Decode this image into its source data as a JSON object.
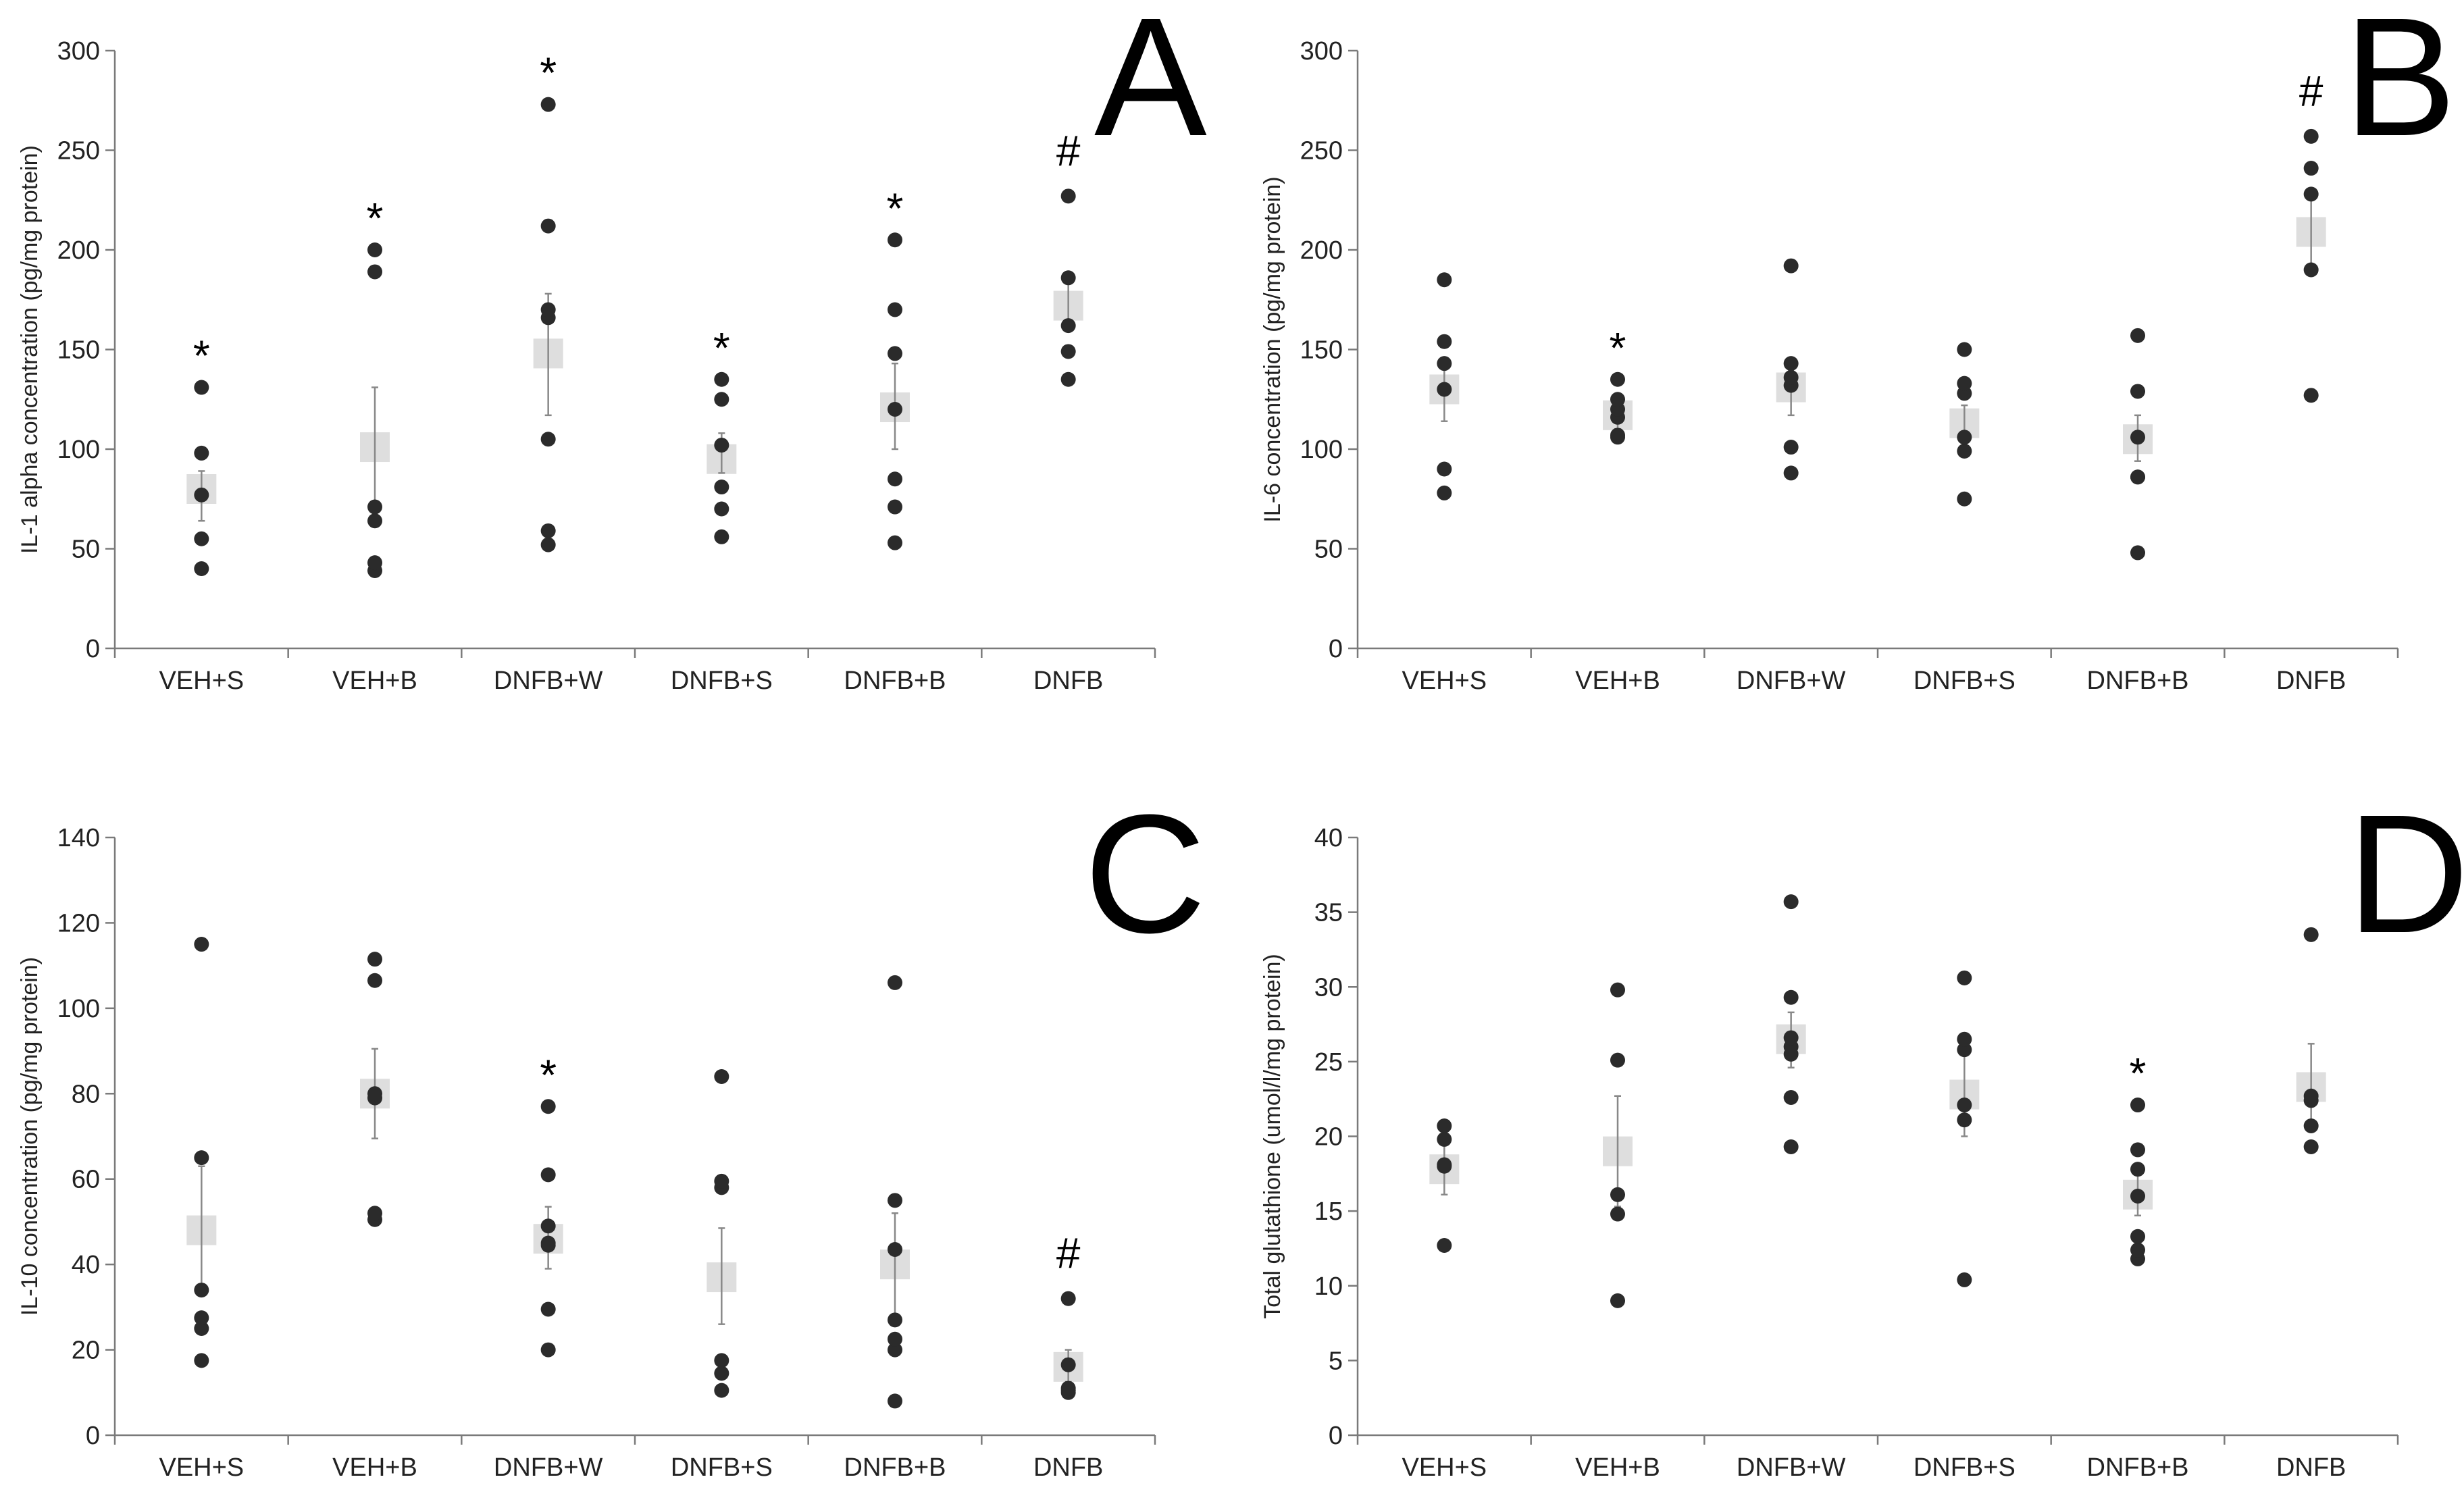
{
  "chart_data": [
    {
      "type": "scatter",
      "panel": "A",
      "categories": [
        "VEH+S",
        "VEH+B",
        "DNFB+W",
        "DNFB+S",
        "DNFB+B",
        "DNFB"
      ],
      "ylabel": "IL-1 alpha concentration (pg/mg protein)",
      "ylim": [
        0,
        300
      ],
      "yticks": [
        0,
        50,
        100,
        150,
        200,
        250,
        300
      ],
      "points": [
        [
          40,
          55,
          77,
          98,
          131
        ],
        [
          39,
          43,
          64,
          71,
          189,
          200
        ],
        [
          52,
          59,
          105,
          166,
          170,
          212,
          273
        ],
        [
          56,
          70,
          81,
          102,
          125,
          135
        ],
        [
          53,
          71,
          85,
          120,
          148,
          170,
          205
        ],
        [
          135,
          149,
          162,
          186,
          227
        ]
      ],
      "means": [
        80,
        101,
        148,
        95,
        121,
        172
      ],
      "errors": [
        [
          64,
          89
        ],
        [
          70,
          131
        ],
        [
          117,
          178
        ],
        [
          88,
          108
        ],
        [
          100,
          143
        ],
        [
          160,
          184
        ]
      ],
      "annotations": [
        "*",
        "*",
        "*",
        "*",
        "*",
        "#"
      ]
    },
    {
      "type": "scatter",
      "panel": "B",
      "categories": [
        "VEH+S",
        "VEH+B",
        "DNFB+W",
        "DNFB+S",
        "DNFB+B",
        "DNFB"
      ],
      "ylabel": "IL-6 concentration (pg/mg protein)",
      "ylim": [
        0,
        300
      ],
      "yticks": [
        0,
        50,
        100,
        150,
        200,
        250,
        300
      ],
      "points": [
        [
          78,
          90,
          130,
          143,
          154,
          185
        ],
        [
          106,
          107,
          116,
          120,
          125,
          135
        ],
        [
          88,
          101,
          132,
          136,
          143,
          192
        ],
        [
          75,
          99,
          106,
          128,
          133,
          150
        ],
        [
          48,
          86,
          86,
          106,
          129,
          157
        ],
        [
          127,
          190,
          228,
          241,
          257
        ]
      ],
      "means": [
        130,
        117,
        131,
        113,
        105,
        209
      ],
      "errors": [
        [
          114,
          146
        ],
        [
          110,
          125
        ],
        [
          117,
          145
        ],
        [
          104,
          122
        ],
        [
          94,
          117
        ],
        [
          190,
          226
        ]
      ],
      "annotations": [
        "",
        "*",
        "",
        "",
        "",
        "#"
      ]
    },
    {
      "type": "scatter",
      "panel": "C",
      "categories": [
        "VEH+S",
        "VEH+B",
        "DNFB+W",
        "DNFB+S",
        "DNFB+B",
        "DNFB"
      ],
      "ylabel": "IL-10 concentration (pg/mg protein)",
      "ylim": [
        0,
        140
      ],
      "yticks": [
        0,
        20,
        40,
        60,
        80,
        100,
        120,
        140
      ],
      "points": [
        [
          17.5,
          25,
          27.5,
          34,
          65,
          115
        ],
        [
          50.5,
          52,
          79,
          80,
          106.5,
          111.5
        ],
        [
          20,
          29.5,
          44.5,
          45,
          49,
          61,
          77
        ],
        [
          10.5,
          14.5,
          17.5,
          58,
          59.5,
          84
        ],
        [
          8,
          20,
          22.5,
          27,
          43.5,
          55,
          106
        ],
        [
          10,
          10.5,
          11,
          16.5,
          32
        ]
      ],
      "means": [
        48,
        80,
        46,
        37,
        40,
        16
      ],
      "errors": [
        [
          34,
          63
        ],
        [
          69.5,
          90.5
        ],
        [
          39,
          53.5
        ],
        [
          26,
          48.5
        ],
        [
          28,
          52
        ],
        [
          12.5,
          20
        ]
      ],
      "annotations": [
        "",
        "",
        "*",
        "",
        "",
        "#"
      ]
    },
    {
      "type": "scatter",
      "panel": "D",
      "categories": [
        "VEH+S",
        "VEH+B",
        "DNFB+W",
        "DNFB+S",
        "DNFB+B",
        "DNFB"
      ],
      "ylabel": "Total glutathione (umol/l/mg protein)",
      "ylim": [
        0,
        40
      ],
      "yticks": [
        0,
        5,
        10,
        15,
        20,
        25,
        30,
        35,
        40
      ],
      "points": [
        [
          12.7,
          18,
          18.1,
          19.8,
          20.7
        ],
        [
          9,
          14.8,
          16.1,
          25.1,
          29.8
        ],
        [
          19.3,
          22.6,
          25.5,
          26,
          26.6,
          29.3,
          35.7
        ],
        [
          10.4,
          21.1,
          22.1,
          25.8,
          26.5,
          30.6
        ],
        [
          11.8,
          12.4,
          13.3,
          16,
          17.8,
          19.1,
          22.1
        ],
        [
          19.3,
          20.7,
          22.4,
          22.7,
          33.5
        ]
      ],
      "means": [
        17.8,
        19,
        26.5,
        22.8,
        16.1,
        23.3
      ],
      "errors": [
        [
          16.1,
          19.5
        ],
        [
          15.3,
          22.7
        ],
        [
          24.6,
          28.3
        ],
        [
          20,
          25.8
        ],
        [
          14.7,
          17.5
        ],
        [
          20.5,
          26.2
        ]
      ],
      "annotations": [
        "",
        "",
        "",
        "",
        "*",
        ""
      ]
    }
  ]
}
